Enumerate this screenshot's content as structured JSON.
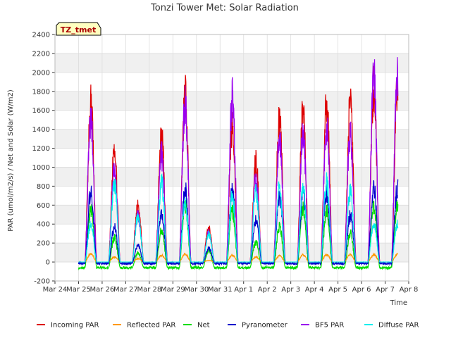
{
  "chart_data": {
    "type": "line",
    "title": "Tonzi Tower Met: Solar Radiation",
    "xlabel": "Time",
    "ylabel": "PAR (umol/m2/s) / Net and Solar (W/m2)",
    "ylim": [
      -200,
      2400
    ],
    "yticks": [
      -200,
      0,
      200,
      400,
      600,
      800,
      1000,
      1200,
      1400,
      1600,
      1800,
      2000,
      2200,
      2400
    ],
    "xlim": [
      0,
      15
    ],
    "xtick_labels": [
      "Mar 24",
      "Mar 25",
      "Mar 26",
      "Mar 27",
      "Mar 28",
      "Mar 29",
      "Mar 30",
      "Mar 31",
      "Apr 1",
      "Apr 2",
      "Apr 3",
      "Apr 4",
      "Apr 5",
      "Apr 6",
      "Apr 7",
      "Apr 8"
    ],
    "grid": true,
    "badge": "TZ_tmet",
    "legend_position": "bottom",
    "day_peaks_note": "Approximate daily peak values read from the chart, one per day starting Mar 24 (Mar 24 has no data).",
    "series": [
      {
        "name": "Incoming PAR",
        "color": "#dd0000",
        "night": 0,
        "day_peaks": [
          null,
          1920,
          1330,
          670,
          1510,
          2000,
          400,
          1620,
          1190,
          1700,
          1800,
          1900,
          1910,
          2080,
          2050
        ]
      },
      {
        "name": "Reflected PAR",
        "color": "#ff9900",
        "night": 0,
        "day_peaks": [
          null,
          100,
          60,
          40,
          80,
          95,
          20,
          80,
          60,
          75,
          85,
          90,
          90,
          90,
          95
        ]
      },
      {
        "name": "Net",
        "color": "#00dd00",
        "night": -60,
        "day_peaks": [
          null,
          650,
          300,
          120,
          400,
          700,
          150,
          620,
          250,
          440,
          650,
          620,
          350,
          690,
          700
        ]
      },
      {
        "name": "Pyranometer",
        "color": "#0000cc",
        "night": -15,
        "day_peaks": [
          null,
          850,
          420,
          200,
          580,
          870,
          170,
          850,
          500,
          800,
          830,
          830,
          560,
          900,
          890
        ]
      },
      {
        "name": "BF5 PAR",
        "color": "#9900ee",
        "night": 0,
        "day_peaks": [
          null,
          1750,
          1130,
          560,
          1280,
          1930,
          360,
          1990,
          1000,
          1480,
          1560,
          1630,
          1550,
          2220,
          2280
        ]
      },
      {
        "name": "Diffuse PAR",
        "color": "#00eeee",
        "night": 0,
        "day_peaks": [
          null,
          460,
          940,
          540,
          950,
          700,
          330,
          780,
          860,
          880,
          900,
          950,
          840,
          460,
          450
        ]
      }
    ]
  }
}
